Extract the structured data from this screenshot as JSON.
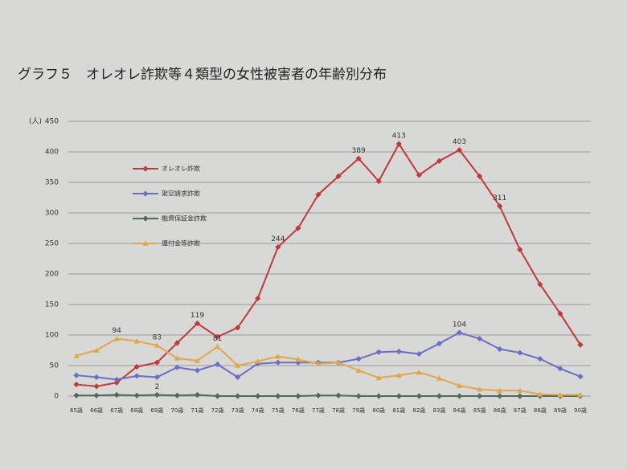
{
  "chart_data": {
    "type": "line",
    "title": "グラフ５　オレオレ詐欺等４類型の女性被害者の年齢別分布",
    "y_label": "(人)",
    "categories": [
      "65歳",
      "66歳",
      "67歳",
      "68歳",
      "69歳",
      "70歳",
      "71歳",
      "72歳",
      "73歳",
      "74歳",
      "75歳",
      "76歳",
      "77歳",
      "78歳",
      "79歳",
      "80歳",
      "81歳",
      "82歳",
      "83歳",
      "84歳",
      "85歳",
      "86歳",
      "87歳",
      "88歳",
      "89歳",
      "90歳"
    ],
    "ylim": [
      0,
      450
    ],
    "yticks": [
      0,
      50,
      100,
      150,
      200,
      250,
      300,
      350,
      400,
      450
    ],
    "grid": true,
    "series": [
      {
        "name": "オレオレ詐欺",
        "color": "#c0393b",
        "marker": "diamond",
        "values": [
          19,
          16,
          22,
          48,
          55,
          87,
          119,
          97,
          112,
          160,
          244,
          275,
          330,
          360,
          389,
          352,
          413,
          362,
          385,
          403,
          360,
          311,
          240,
          183,
          135,
          84
        ],
        "labeled_points": [
          6,
          10,
          14,
          16,
          19,
          21
        ]
      },
      {
        "name": "架空請求詐欺",
        "color": "#6a6fc4",
        "marker": "diamond",
        "values": [
          34,
          31,
          27,
          33,
          31,
          47,
          42,
          52,
          31,
          53,
          55,
          55,
          55,
          55,
          61,
          72,
          73,
          69,
          86,
          104,
          94,
          77,
          71,
          61,
          45,
          32
        ],
        "labeled_points": [
          19
        ]
      },
      {
        "name": "融資保証金詐欺",
        "color": "#4f6a5a",
        "marker": "diamond",
        "values": [
          1,
          1,
          2,
          1,
          2,
          1,
          2,
          0,
          0,
          0,
          0,
          0,
          1,
          1,
          0,
          0,
          0,
          0,
          0,
          0,
          0,
          0,
          0,
          0,
          0,
          0
        ],
        "labeled_points": [
          4
        ]
      },
      {
        "name": "還付金等詐欺",
        "color": "#e0a84a",
        "marker": "triangle",
        "values": [
          66,
          75,
          94,
          90,
          83,
          62,
          58,
          81,
          50,
          57,
          65,
          60,
          53,
          55,
          42,
          30,
          34,
          39,
          29,
          17,
          11,
          9,
          9,
          3,
          2,
          2
        ],
        "labeled_points": [
          2,
          4,
          7
        ]
      }
    ]
  }
}
